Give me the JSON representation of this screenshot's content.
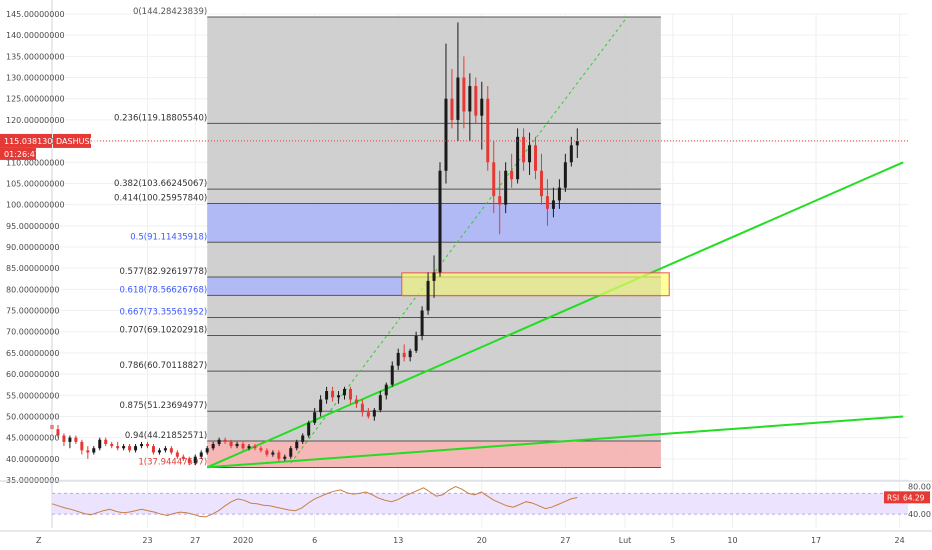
{
  "chart_data": {
    "type": "candlestick",
    "symbol": "DASHUSDT",
    "price": {
      "ylim": [
        35,
        145
      ],
      "y_ticks": [
        "145.00000000",
        "140.00000000",
        "135.00000000",
        "130.00000000",
        "125.00000000",
        "120.00000000",
        "115.00000000",
        "110.00000000",
        "105.00000000",
        "100.00000000",
        "95.00000000",
        "90.00000000",
        "85.00000000",
        "80.00000000",
        "75.00000000",
        "70.00000000",
        "65.00000000",
        "60.00000000",
        "55.00000000",
        "50.00000000",
        "45.00000000",
        "40.00000000",
        "35.00000000"
      ],
      "current_price_label": "115.03813050",
      "current_price": 115.04,
      "countdown_label": "01:26:47",
      "symbol_label": "DASHUSDT"
    },
    "x_axis": {
      "left_label": "Z",
      "ticks": [
        {
          "label": "23",
          "index": 23
        },
        {
          "label": "27",
          "index": 27
        },
        {
          "label": "2020",
          "index": 31
        },
        {
          "label": "6",
          "index": 37
        },
        {
          "label": "13",
          "index": 44
        },
        {
          "label": "20",
          "index": 51
        },
        {
          "label": "27",
          "index": 58
        },
        {
          "label": "Lut",
          "index": 63
        },
        {
          "label": "5",
          "index": 67
        },
        {
          "label": "10",
          "index": 72
        },
        {
          "label": "17",
          "index": 79
        },
        {
          "label": "24",
          "index": 86
        }
      ],
      "index_range": [
        15,
        86.7
      ]
    },
    "fibonacci": {
      "levels": [
        {
          "label": "0(144.28423839)",
          "price": 144.28423839,
          "color": "#555555"
        },
        {
          "label": "0.236(119.18805540)",
          "price": 119.1880554,
          "color": "#333333"
        },
        {
          "label": "0.382(103.66245067)",
          "price": 103.66245067,
          "color": "#333333"
        },
        {
          "label": "0.414(100.25957840)",
          "price": 100.2595784,
          "color": "#333333"
        },
        {
          "label": "0.5(91.11435918)",
          "price": 91.11435918,
          "color": "#3d5afe"
        },
        {
          "label": "0.577(82.92619778)",
          "price": 82.92619778,
          "color": "#333333"
        },
        {
          "label": "0.618(78.56626768)",
          "price": 78.56626768,
          "color": "#3d5afe"
        },
        {
          "label": "0.667(73.35561952)",
          "price": 73.35561952,
          "color": "#3d5afe"
        },
        {
          "label": "0.707(69.10202918)",
          "price": 69.10202918,
          "color": "#333333"
        },
        {
          "label": "0.786(60.70118827)",
          "price": 60.70118827,
          "color": "#333333"
        },
        {
          "label": "0.875(51.23694977)",
          "price": 51.23694977,
          "color": "#333333"
        },
        {
          "label": "0.94(44.21852571)",
          "price": 44.21852571,
          "color": "#333333"
        },
        {
          "label": "1(37.94447597)",
          "price": 37.94447597,
          "color": "#e53935"
        }
      ],
      "start_index": 28,
      "end_index": 66
    },
    "zones": [
      {
        "from": 100.2595784,
        "to": 91.11435918,
        "color": "#aab4ff"
      },
      {
        "from": 82.92619778,
        "to": 78.56626768,
        "color": "#aab4ff"
      },
      {
        "from": 44.21852571,
        "to": 37.94447597,
        "color": "#ffb0b0"
      }
    ],
    "highlight_box": {
      "x_from": 44.3,
      "x_to": 66.7,
      "price_from": 78.5,
      "price_to": 83.9,
      "color": "#ffff66"
    },
    "trendlines": [
      {
        "points": [
          [
            28,
            38
          ],
          [
            86.3,
            110
          ]
        ],
        "color": "#22dd22"
      },
      {
        "points": [
          [
            28,
            38
          ],
          [
            86.3,
            50
          ]
        ],
        "color": "#22dd22"
      },
      {
        "points": [
          [
            35,
            39
          ],
          [
            63.1,
            144
          ]
        ],
        "color": "#33cc33",
        "dashed": true
      }
    ],
    "candles_ohlc": [
      [
        15,
        48,
        49.5,
        46,
        47
      ],
      [
        15.5,
        47,
        48,
        45,
        45.5
      ],
      [
        16,
        45.5,
        46,
        43,
        44
      ],
      [
        16.5,
        44,
        45.5,
        42.5,
        45
      ],
      [
        17,
        45,
        45.5,
        43.5,
        44
      ],
      [
        17.5,
        44,
        44.5,
        41,
        42
      ],
      [
        18,
        42,
        43,
        40,
        41.5
      ],
      [
        18.5,
        41.5,
        43,
        41,
        42.5
      ],
      [
        19,
        42.5,
        45,
        42,
        44.5
      ],
      [
        19.5,
        44.5,
        45,
        43,
        43.5
      ],
      [
        20,
        43.5,
        44,
        42.5,
        43
      ],
      [
        20.5,
        43,
        44,
        42,
        42.5
      ],
      [
        21,
        42.5,
        43.5,
        42,
        43
      ],
      [
        21.5,
        43,
        43.5,
        41.5,
        42
      ],
      [
        22,
        42,
        43.5,
        41.5,
        43
      ],
      [
        22.5,
        43,
        44,
        42.5,
        43.5
      ],
      [
        23,
        43.5,
        44,
        42.5,
        43
      ],
      [
        23.5,
        43,
        43.5,
        41,
        41.5
      ],
      [
        24,
        41.5,
        42.5,
        41,
        42
      ],
      [
        24.5,
        42,
        43,
        41.5,
        42.5
      ],
      [
        25,
        42.5,
        43,
        41,
        41.5
      ],
      [
        25.5,
        41.5,
        42,
        40,
        40.5
      ],
      [
        26,
        40.5,
        41,
        39.5,
        40
      ],
      [
        26.5,
        40,
        40.5,
        38.5,
        39
      ],
      [
        27,
        39,
        41,
        38.5,
        40.5
      ],
      [
        27.5,
        40.5,
        42,
        40,
        41.5
      ],
      [
        28,
        41.5,
        43,
        41,
        42.5
      ],
      [
        28.5,
        42.5,
        44,
        42,
        43.5
      ],
      [
        29,
        43.5,
        45,
        43,
        44.5
      ],
      [
        29.5,
        44.5,
        45,
        43.5,
        44
      ],
      [
        30,
        44,
        44.5,
        42.5,
        43
      ],
      [
        30.5,
        43,
        44,
        42.5,
        43.5
      ],
      [
        31,
        43.5,
        44,
        42,
        42.5
      ],
      [
        31.5,
        42.5,
        43.5,
        42,
        43
      ],
      [
        32,
        43,
        43.5,
        42,
        42.5
      ],
      [
        32.5,
        42.5,
        43,
        41.5,
        42
      ],
      [
        33,
        42,
        42.5,
        40.5,
        41
      ],
      [
        33.5,
        41,
        42,
        40.5,
        41.5
      ],
      [
        34,
        41.5,
        42,
        39.5,
        40
      ],
      [
        34.5,
        40,
        41,
        39.5,
        40.5
      ],
      [
        35,
        40.5,
        43,
        40,
        42.5
      ],
      [
        35.5,
        42.5,
        44.5,
        42,
        44
      ],
      [
        36,
        44,
        46,
        43.5,
        45.5
      ],
      [
        36.5,
        45.5,
        49,
        45,
        48.5
      ],
      [
        37,
        48.5,
        52,
        48,
        51
      ],
      [
        37.5,
        51,
        55,
        50,
        54
      ],
      [
        38,
        54,
        57,
        53,
        56
      ],
      [
        38.5,
        56,
        57,
        53.5,
        54.5
      ],
      [
        39,
        54.5,
        56,
        53,
        55
      ],
      [
        39.5,
        55,
        57,
        54,
        56.5
      ],
      [
        40,
        56.5,
        57,
        53,
        54
      ],
      [
        40.5,
        54,
        55,
        52,
        53
      ],
      [
        41,
        53,
        54,
        50,
        51
      ],
      [
        41.5,
        51,
        52,
        49.5,
        50
      ],
      [
        42,
        50,
        52,
        49,
        51.5
      ],
      [
        42.5,
        51.5,
        56,
        51,
        55
      ],
      [
        43,
        55,
        58,
        54,
        57.5
      ],
      [
        43.5,
        57.5,
        63,
        57,
        62
      ],
      [
        44,
        62,
        66,
        61,
        65
      ],
      [
        44.5,
        65,
        67,
        63,
        64
      ],
      [
        45,
        64,
        66,
        63,
        65.5
      ],
      [
        45.5,
        65.5,
        70,
        65,
        69
      ],
      [
        46,
        69,
        76,
        68,
        75
      ],
      [
        46.5,
        75,
        84,
        74,
        82
      ],
      [
        47,
        82,
        88,
        78,
        84
      ],
      [
        47.5,
        84,
        110,
        83,
        108
      ],
      [
        48,
        108,
        138,
        105,
        125
      ],
      [
        48.5,
        125,
        132,
        118,
        120
      ],
      [
        49,
        120,
        143,
        115,
        130
      ],
      [
        49.5,
        130,
        135,
        118,
        122
      ],
      [
        50,
        122,
        131,
        115,
        128
      ],
      [
        50.5,
        128,
        130,
        119,
        121
      ],
      [
        51,
        121,
        129,
        113,
        125
      ],
      [
        51.5,
        125,
        128,
        108,
        110
      ],
      [
        52,
        110,
        115,
        98,
        102
      ],
      [
        52.5,
        102,
        108,
        93,
        100
      ],
      [
        53,
        100,
        110,
        98,
        108
      ],
      [
        53.5,
        108,
        112,
        104,
        106
      ],
      [
        54,
        106,
        118,
        105,
        116
      ],
      [
        54.5,
        116,
        118,
        108,
        110
      ],
      [
        55,
        110,
        117,
        107,
        114
      ],
      [
        55.5,
        114,
        116,
        106,
        108
      ],
      [
        56,
        108,
        112,
        100,
        102
      ],
      [
        56.5,
        102,
        106,
        95,
        99
      ],
      [
        57,
        99,
        104,
        97,
        101
      ],
      [
        57.5,
        101,
        106,
        99,
        104
      ],
      [
        58,
        104,
        112,
        103,
        110
      ],
      [
        58.5,
        110,
        116,
        109,
        114
      ],
      [
        59,
        114,
        118,
        111,
        115
      ]
    ],
    "rsi": {
      "label": "RSI",
      "value_label": "64.29",
      "current": 64.29,
      "ylim": [
        20,
        85
      ],
      "ticks": [
        "80.00",
        "40.00"
      ],
      "band": [
        40,
        70
      ],
      "values": [
        55,
        52,
        49,
        47,
        44,
        41,
        39,
        42,
        45,
        47,
        44,
        42,
        43,
        45,
        47,
        45,
        43,
        40,
        38,
        41,
        43,
        42,
        40,
        37,
        36,
        40,
        45,
        52,
        58,
        62,
        60,
        56,
        55,
        53,
        52,
        50,
        48,
        46,
        45,
        49,
        56,
        62,
        66,
        70,
        73,
        75,
        71,
        69,
        70,
        72,
        68,
        63,
        60,
        58,
        61,
        66,
        70,
        74,
        78,
        72,
        66,
        68,
        75,
        80,
        76,
        70,
        68,
        72,
        66,
        60,
        56,
        52,
        50,
        54,
        58,
        56,
        52,
        48,
        50,
        54,
        58,
        62,
        64
      ]
    }
  }
}
